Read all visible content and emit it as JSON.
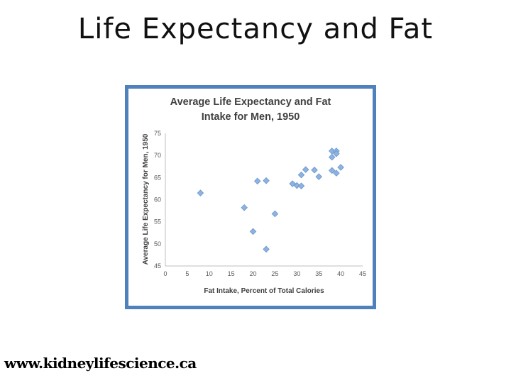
{
  "slide": {
    "title": "Life Expectancy and Fat",
    "footer": "www.kidneylifescience.ca"
  },
  "chart_data": {
    "type": "scatter",
    "title_lines": [
      "Average Life Expectancy and Fat",
      "Intake for Men, 1950"
    ],
    "xlabel": "Fat Intake, Percent of Total Calories",
    "ylabel": "Average Life Expectancy for Men, 1950",
    "xlim": [
      0,
      45
    ],
    "ylim": [
      45,
      75
    ],
    "xticks": [
      "0",
      "5",
      "10",
      "15",
      "20",
      "25",
      "30",
      "35",
      "40",
      "45"
    ],
    "yticks": [
      "45",
      "50",
      "55",
      "60",
      "65",
      "70",
      "75"
    ],
    "grid": false,
    "marker_color": "#8db3e2",
    "marker_edge": "#6a95c9",
    "points": [
      [
        8,
        61.5
      ],
      [
        18,
        58.2
      ],
      [
        20,
        52.8
      ],
      [
        21,
        64.2
      ],
      [
        23,
        64.3
      ],
      [
        23,
        48.8
      ],
      [
        25,
        56.8
      ],
      [
        29,
        63.6
      ],
      [
        30,
        63.2
      ],
      [
        31,
        65.6
      ],
      [
        31,
        63.1
      ],
      [
        32,
        66.8
      ],
      [
        34,
        66.7
      ],
      [
        35,
        65.2
      ],
      [
        38,
        71.0
      ],
      [
        38,
        69.6
      ],
      [
        38,
        66.6
      ],
      [
        39,
        71.0
      ],
      [
        39,
        70.4
      ],
      [
        39,
        66.0
      ],
      [
        40,
        67.3
      ]
    ]
  }
}
